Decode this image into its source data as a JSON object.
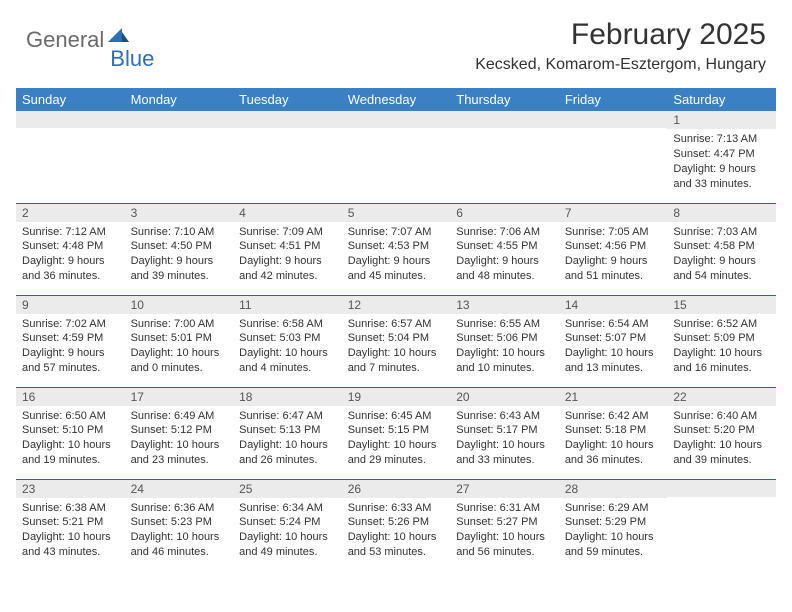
{
  "logo": {
    "text_general": "General",
    "text_blue": "Blue",
    "icon_color": "#2d6fb5"
  },
  "title": "February 2025",
  "location": "Kecsked, Komarom-Esztergom, Hungary",
  "colors": {
    "header_bg": "#3b7fc4",
    "header_text": "#ffffff",
    "daynum_bg": "#ebebeb",
    "border": "#30629a",
    "body_text": "#333333",
    "logo_gray": "#6b6b6b",
    "logo_blue": "#2d6fb5"
  },
  "typography": {
    "title_fontsize": 30,
    "location_fontsize": 16,
    "header_fontsize": 13,
    "daynum_fontsize": 12,
    "body_fontsize": 11
  },
  "weekdays": [
    "Sunday",
    "Monday",
    "Tuesday",
    "Wednesday",
    "Thursday",
    "Friday",
    "Saturday"
  ],
  "weeks": [
    [
      {
        "day": "",
        "sunrise": "",
        "sunset": "",
        "daylight": ""
      },
      {
        "day": "",
        "sunrise": "",
        "sunset": "",
        "daylight": ""
      },
      {
        "day": "",
        "sunrise": "",
        "sunset": "",
        "daylight": ""
      },
      {
        "day": "",
        "sunrise": "",
        "sunset": "",
        "daylight": ""
      },
      {
        "day": "",
        "sunrise": "",
        "sunset": "",
        "daylight": ""
      },
      {
        "day": "",
        "sunrise": "",
        "sunset": "",
        "daylight": ""
      },
      {
        "day": "1",
        "sunrise": "Sunrise: 7:13 AM",
        "sunset": "Sunset: 4:47 PM",
        "daylight": "Daylight: 9 hours and 33 minutes."
      }
    ],
    [
      {
        "day": "2",
        "sunrise": "Sunrise: 7:12 AM",
        "sunset": "Sunset: 4:48 PM",
        "daylight": "Daylight: 9 hours and 36 minutes."
      },
      {
        "day": "3",
        "sunrise": "Sunrise: 7:10 AM",
        "sunset": "Sunset: 4:50 PM",
        "daylight": "Daylight: 9 hours and 39 minutes."
      },
      {
        "day": "4",
        "sunrise": "Sunrise: 7:09 AM",
        "sunset": "Sunset: 4:51 PM",
        "daylight": "Daylight: 9 hours and 42 minutes."
      },
      {
        "day": "5",
        "sunrise": "Sunrise: 7:07 AM",
        "sunset": "Sunset: 4:53 PM",
        "daylight": "Daylight: 9 hours and 45 minutes."
      },
      {
        "day": "6",
        "sunrise": "Sunrise: 7:06 AM",
        "sunset": "Sunset: 4:55 PM",
        "daylight": "Daylight: 9 hours and 48 minutes."
      },
      {
        "day": "7",
        "sunrise": "Sunrise: 7:05 AM",
        "sunset": "Sunset: 4:56 PM",
        "daylight": "Daylight: 9 hours and 51 minutes."
      },
      {
        "day": "8",
        "sunrise": "Sunrise: 7:03 AM",
        "sunset": "Sunset: 4:58 PM",
        "daylight": "Daylight: 9 hours and 54 minutes."
      }
    ],
    [
      {
        "day": "9",
        "sunrise": "Sunrise: 7:02 AM",
        "sunset": "Sunset: 4:59 PM",
        "daylight": "Daylight: 9 hours and 57 minutes."
      },
      {
        "day": "10",
        "sunrise": "Sunrise: 7:00 AM",
        "sunset": "Sunset: 5:01 PM",
        "daylight": "Daylight: 10 hours and 0 minutes."
      },
      {
        "day": "11",
        "sunrise": "Sunrise: 6:58 AM",
        "sunset": "Sunset: 5:03 PM",
        "daylight": "Daylight: 10 hours and 4 minutes."
      },
      {
        "day": "12",
        "sunrise": "Sunrise: 6:57 AM",
        "sunset": "Sunset: 5:04 PM",
        "daylight": "Daylight: 10 hours and 7 minutes."
      },
      {
        "day": "13",
        "sunrise": "Sunrise: 6:55 AM",
        "sunset": "Sunset: 5:06 PM",
        "daylight": "Daylight: 10 hours and 10 minutes."
      },
      {
        "day": "14",
        "sunrise": "Sunrise: 6:54 AM",
        "sunset": "Sunset: 5:07 PM",
        "daylight": "Daylight: 10 hours and 13 minutes."
      },
      {
        "day": "15",
        "sunrise": "Sunrise: 6:52 AM",
        "sunset": "Sunset: 5:09 PM",
        "daylight": "Daylight: 10 hours and 16 minutes."
      }
    ],
    [
      {
        "day": "16",
        "sunrise": "Sunrise: 6:50 AM",
        "sunset": "Sunset: 5:10 PM",
        "daylight": "Daylight: 10 hours and 19 minutes."
      },
      {
        "day": "17",
        "sunrise": "Sunrise: 6:49 AM",
        "sunset": "Sunset: 5:12 PM",
        "daylight": "Daylight: 10 hours and 23 minutes."
      },
      {
        "day": "18",
        "sunrise": "Sunrise: 6:47 AM",
        "sunset": "Sunset: 5:13 PM",
        "daylight": "Daylight: 10 hours and 26 minutes."
      },
      {
        "day": "19",
        "sunrise": "Sunrise: 6:45 AM",
        "sunset": "Sunset: 5:15 PM",
        "daylight": "Daylight: 10 hours and 29 minutes."
      },
      {
        "day": "20",
        "sunrise": "Sunrise: 6:43 AM",
        "sunset": "Sunset: 5:17 PM",
        "daylight": "Daylight: 10 hours and 33 minutes."
      },
      {
        "day": "21",
        "sunrise": "Sunrise: 6:42 AM",
        "sunset": "Sunset: 5:18 PM",
        "daylight": "Daylight: 10 hours and 36 minutes."
      },
      {
        "day": "22",
        "sunrise": "Sunrise: 6:40 AM",
        "sunset": "Sunset: 5:20 PM",
        "daylight": "Daylight: 10 hours and 39 minutes."
      }
    ],
    [
      {
        "day": "23",
        "sunrise": "Sunrise: 6:38 AM",
        "sunset": "Sunset: 5:21 PM",
        "daylight": "Daylight: 10 hours and 43 minutes."
      },
      {
        "day": "24",
        "sunrise": "Sunrise: 6:36 AM",
        "sunset": "Sunset: 5:23 PM",
        "daylight": "Daylight: 10 hours and 46 minutes."
      },
      {
        "day": "25",
        "sunrise": "Sunrise: 6:34 AM",
        "sunset": "Sunset: 5:24 PM",
        "daylight": "Daylight: 10 hours and 49 minutes."
      },
      {
        "day": "26",
        "sunrise": "Sunrise: 6:33 AM",
        "sunset": "Sunset: 5:26 PM",
        "daylight": "Daylight: 10 hours and 53 minutes."
      },
      {
        "day": "27",
        "sunrise": "Sunrise: 6:31 AM",
        "sunset": "Sunset: 5:27 PM",
        "daylight": "Daylight: 10 hours and 56 minutes."
      },
      {
        "day": "28",
        "sunrise": "Sunrise: 6:29 AM",
        "sunset": "Sunset: 5:29 PM",
        "daylight": "Daylight: 10 hours and 59 minutes."
      },
      {
        "day": "",
        "sunrise": "",
        "sunset": "",
        "daylight": ""
      }
    ]
  ]
}
